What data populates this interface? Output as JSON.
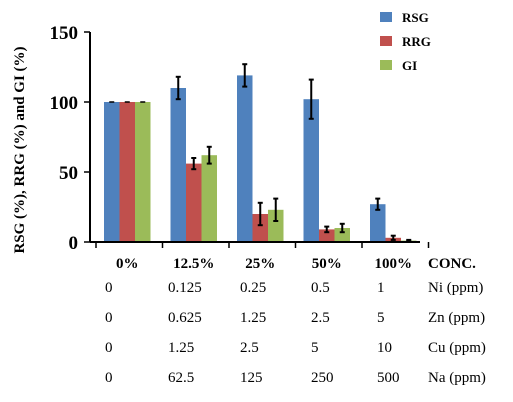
{
  "chart_data": {
    "type": "bar",
    "categories": [
      "0%",
      "12.5%",
      "25%",
      "50%",
      "100%"
    ],
    "category_axis_title": "CONC.",
    "ylabel": "RSG (%), RRG (%) and GI (%)",
    "ylim": [
      0,
      150
    ],
    "yticks": [
      0,
      50,
      100,
      150
    ],
    "legend_position": "top-right",
    "series": [
      {
        "name": "RSG",
        "color": "#4f81bd",
        "values": [
          100,
          110,
          119,
          102,
          27
        ],
        "errors": [
          0,
          8,
          8,
          14,
          4
        ]
      },
      {
        "name": "RRG",
        "color": "#c0504d",
        "values": [
          100,
          56,
          20,
          9,
          3
        ],
        "errors": [
          0,
          4,
          8,
          2,
          1.5
        ]
      },
      {
        "name": "GI",
        "color": "#9bbb59",
        "values": [
          100,
          62,
          23,
          10,
          1
        ],
        "errors": [
          0,
          6,
          8,
          3,
          0.5
        ]
      }
    ]
  },
  "concentration_table": {
    "rows": [
      {
        "label": "Ni (ppm)",
        "values": [
          "0",
          "0.125",
          "0.25",
          "0.5",
          "1"
        ]
      },
      {
        "label": "Zn (ppm)",
        "values": [
          "0",
          "0.625",
          "1.25",
          "2.5",
          "5"
        ]
      },
      {
        "label": "Cu (ppm)",
        "values": [
          "0",
          "1.25",
          "2.5",
          "5",
          "10"
        ]
      },
      {
        "label": "Na (ppm)",
        "values": [
          "0",
          "62.5",
          "125",
          "250",
          "500"
        ]
      }
    ]
  }
}
